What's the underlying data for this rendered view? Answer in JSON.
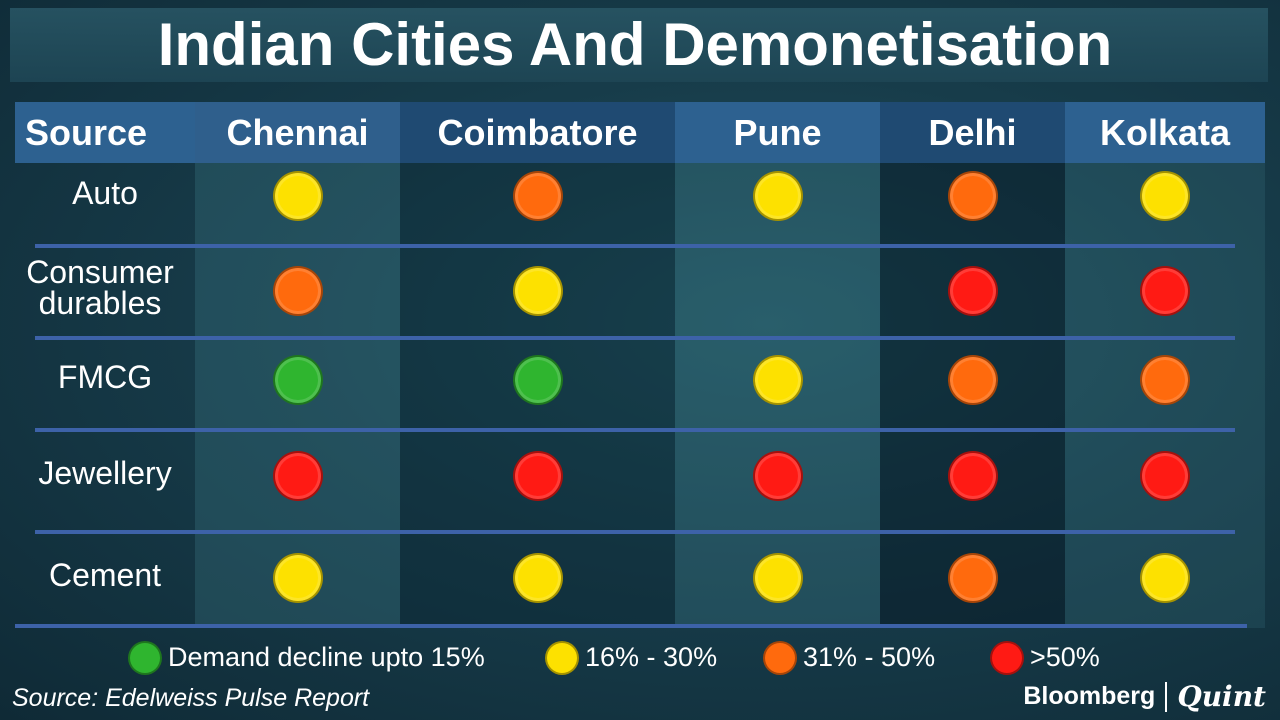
{
  "title": "Indian Cities And Demonetisation",
  "chart_data": {
    "type": "table",
    "columns": [
      "Source",
      "Chennai",
      "Coimbatore",
      "Pune",
      "Delhi",
      "Kolkata"
    ],
    "rows": [
      {
        "source": "Auto",
        "values": [
          "16% - 30%",
          "31% - 50%",
          "16% - 30%",
          "31% - 50%",
          "16% - 30%"
        ]
      },
      {
        "source": "Consumer durables",
        "values": [
          "31% - 50%",
          "16% - 30%",
          null,
          ">50%",
          ">50%"
        ]
      },
      {
        "source": "FMCG",
        "values": [
          "Demand decline upto 15%",
          "Demand decline upto 15%",
          "16% - 30%",
          "31% - 50%",
          "31% - 50%"
        ]
      },
      {
        "source": "Jewellery",
        "values": [
          ">50%",
          ">50%",
          ">50%",
          ">50%",
          ">50%"
        ]
      },
      {
        "source": "Cement",
        "values": [
          "16% - 30%",
          "16% - 30%",
          "16% - 30%",
          "31% - 50%",
          "16% - 30%"
        ]
      }
    ],
    "legend": [
      {
        "label": "Demand decline upto 15%",
        "color": "#2fb52f"
      },
      {
        "label": "16% - 30%",
        "color": "#fde100"
      },
      {
        "label": "31% - 50%",
        "color": "#ff6a0d"
      },
      {
        "label": ">50%",
        "color": "#ff1a14"
      }
    ]
  },
  "source_note": "Source: Edelweiss Pulse Report",
  "brand": {
    "name": "Bloomberg",
    "sub": "Quint"
  }
}
